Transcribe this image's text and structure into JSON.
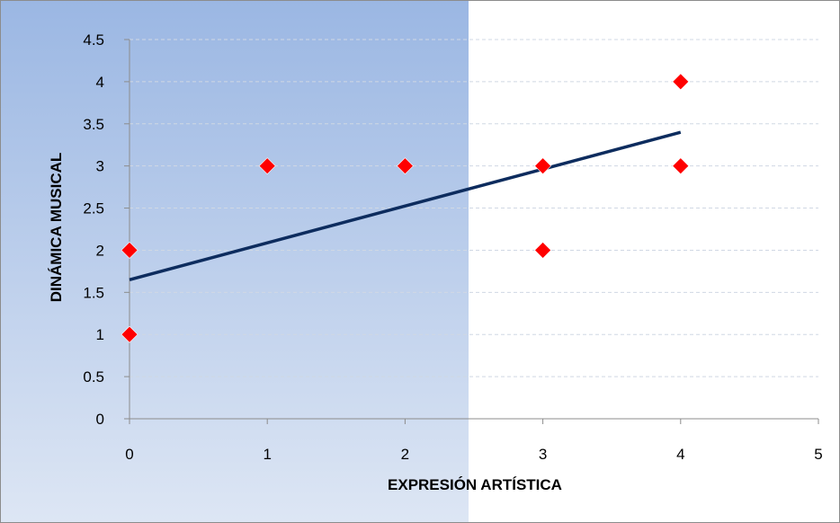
{
  "chart_data": {
    "type": "scatter",
    "title": "",
    "xlabel": "EXPRESIÓN ARTÍSTICA",
    "ylabel": "DINÁMICA MUSICAL",
    "xlim": [
      0,
      5
    ],
    "ylim": [
      0,
      4.5
    ],
    "x_ticks": [
      "0",
      "1",
      "2",
      "3",
      "4",
      "5"
    ],
    "y_ticks": [
      "0",
      "0.5",
      "1",
      "1.5",
      "2",
      "2.5",
      "3",
      "3.5",
      "4",
      "4.5"
    ],
    "grid": "horizontal-dashed",
    "legend": "none",
    "series": [
      {
        "marker": "diamond",
        "color": "#ff0000",
        "points": [
          {
            "x": 0,
            "y": 1
          },
          {
            "x": 0,
            "y": 2
          },
          {
            "x": 1,
            "y": 3
          },
          {
            "x": 2,
            "y": 3
          },
          {
            "x": 3,
            "y": 3
          },
          {
            "x": 3,
            "y": 2
          },
          {
            "x": 4,
            "y": 4
          },
          {
            "x": 4,
            "y": 3
          }
        ]
      }
    ],
    "trendline": {
      "type": "linear",
      "color": "#0d2c5e",
      "start": {
        "x": 0,
        "y": 1.65
      },
      "end": {
        "x": 4,
        "y": 3.4
      }
    },
    "colors": {
      "marker": "#ff0000",
      "trendline": "#0d2c5e",
      "gradient_top": "#9bb7e3",
      "gradient_bottom": "#dde6f4",
      "gridline": "#d0d8e4",
      "axis": "#8c8c8c"
    }
  }
}
